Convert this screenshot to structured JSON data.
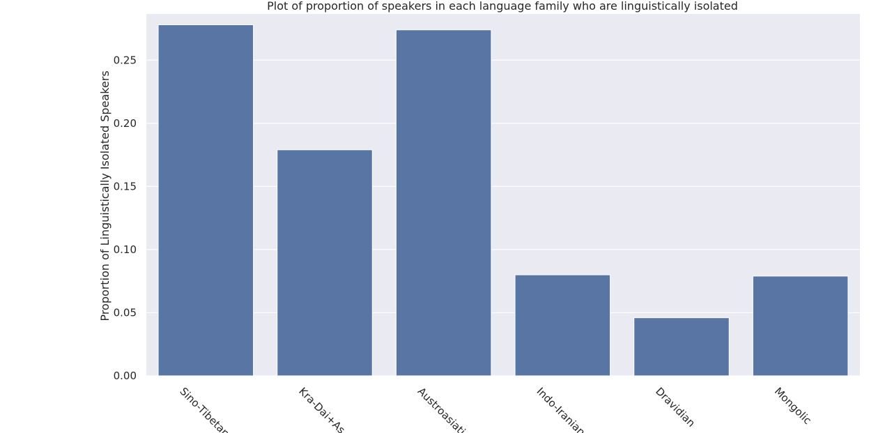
{
  "chart_data": {
    "type": "bar",
    "title": "Plot of proportion of speakers in each language family who are linguistically isolated",
    "xlabel": "",
    "ylabel": "Proportion of Linguistically Isolated Speakers",
    "categories": [
      "Sino-Tibetan",
      "Kra-Dai+As",
      "Austroasiatic",
      "Indo-Iranian",
      "Dravidian",
      "Mongolic"
    ],
    "values": [
      0.278,
      0.179,
      0.274,
      0.08,
      0.046,
      0.079
    ],
    "ylim": [
      0,
      0.2866
    ],
    "yticks": [
      "0.00",
      "0.05",
      "0.10",
      "0.15",
      "0.20",
      "0.25"
    ],
    "grid": true,
    "legend": "none",
    "bar_color": "#5975a4",
    "background_color": "#eaeaf2",
    "grid_color": "#ffffff"
  }
}
